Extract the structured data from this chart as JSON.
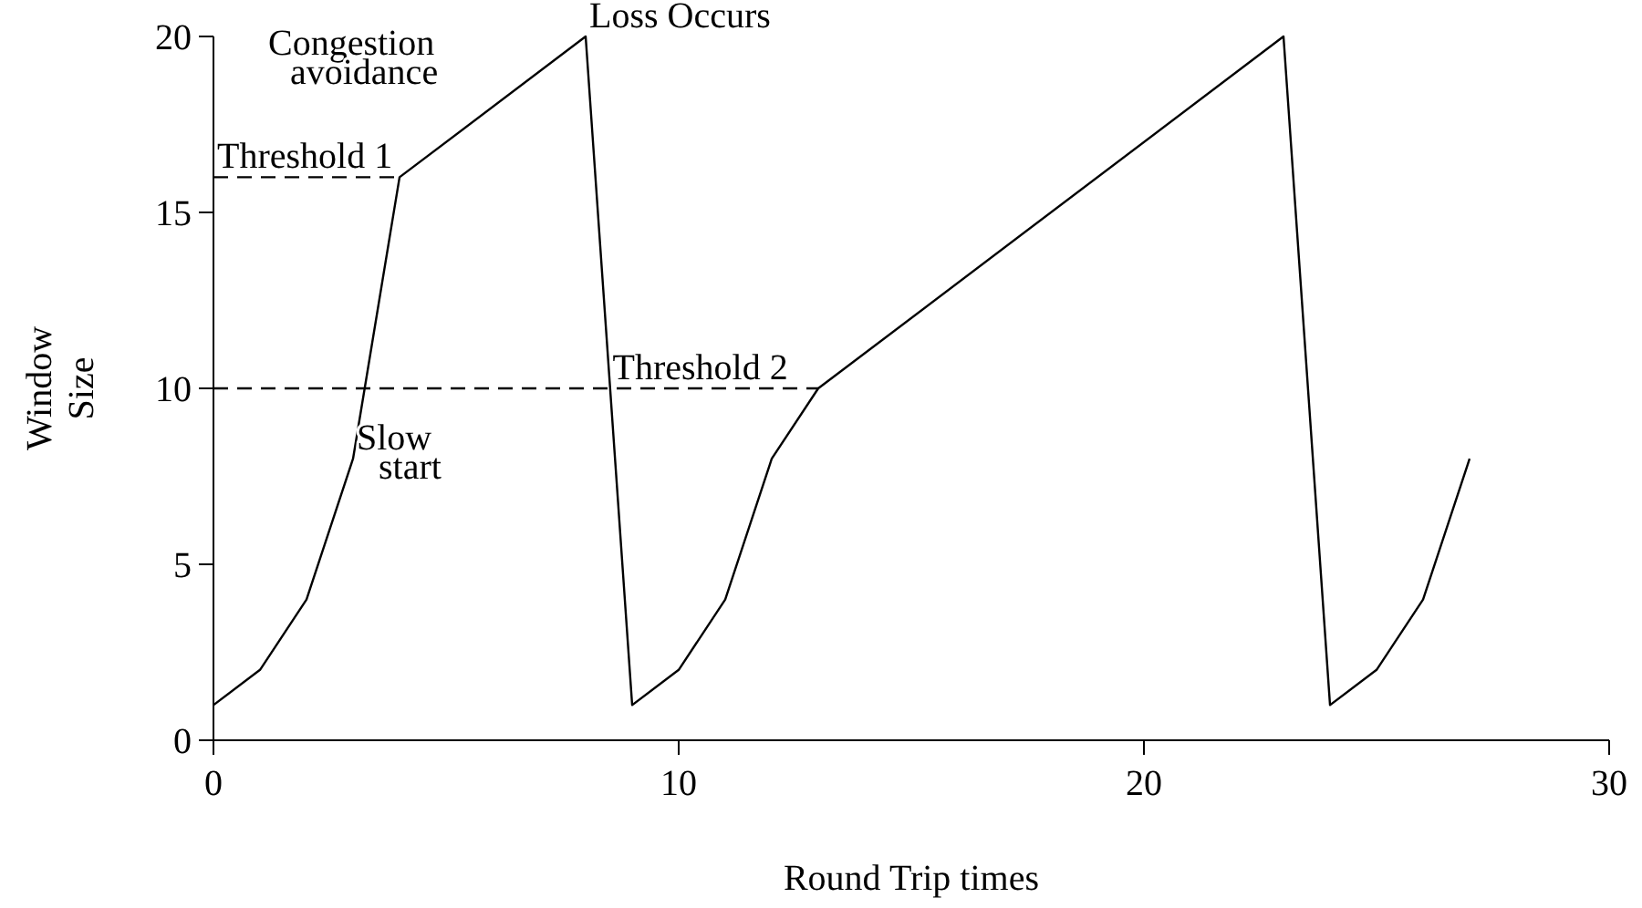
{
  "chart_data": {
    "type": "line",
    "xlabel": "Round Trip times",
    "ylabel": "Window Size",
    "xlim": [
      0,
      30
    ],
    "xticks": [
      0,
      10,
      20,
      30
    ],
    "ylim": [
      0,
      20
    ],
    "yticks": [
      0,
      5,
      10,
      15,
      20
    ],
    "grid": false,
    "marker": "none",
    "series": [
      {
        "color": "#000000",
        "line_style": "solid",
        "x": [
          0,
          1,
          2,
          3,
          4,
          8,
          9,
          10,
          11,
          12,
          13,
          23,
          24,
          25,
          26,
          27
        ],
        "values": [
          1,
          2,
          4,
          8,
          16,
          20,
          1,
          2,
          4,
          8,
          10,
          20,
          1,
          2,
          4,
          8
        ]
      },
      {
        "color": "#000000",
        "line_style": "dashed",
        "x": [
          0,
          4
        ],
        "values": [
          16,
          16
        ]
      },
      {
        "color": "#000000",
        "line_style": "dashed",
        "x": [
          0,
          13
        ],
        "values": [
          10,
          10
        ]
      }
    ],
    "annotations": [
      {
        "text": "Threshold 1",
        "x": 0,
        "y": 16
      },
      {
        "text": "Threshold 2",
        "x": 8.5,
        "y": 10
      },
      "Congestion\navoidance",
      {
        "text": "Loss Occurs",
        "x": 8,
        "y": 20
      },
      {
        "text": "Slow\nstart",
        "x": 3,
        "y": 8
      }
    ]
  }
}
